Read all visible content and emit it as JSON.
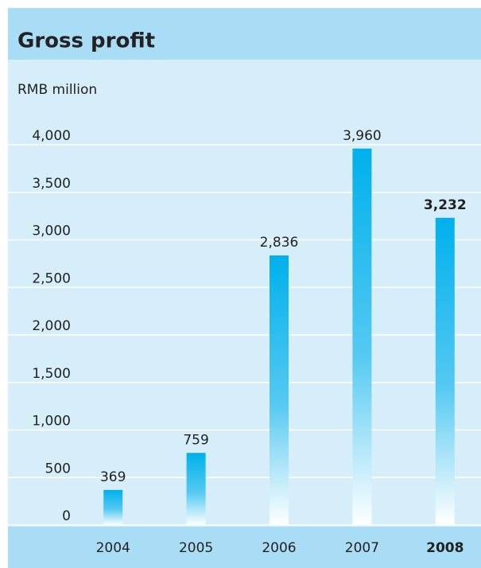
{
  "chart_data": {
    "type": "bar",
    "title": "Gross profit",
    "y_label": "RMB million",
    "categories": [
      "2004",
      "2005",
      "2006",
      "2007",
      "2008"
    ],
    "values": [
      369,
      759,
      2836,
      3960,
      3232
    ],
    "value_labels": [
      "369",
      "759",
      "2,836",
      "3,960",
      "3,232"
    ],
    "color": "#00b0ec",
    "ylim": [
      0,
      4000
    ],
    "yticks": [
      0,
      500,
      {
        "value": 1000,
        "label": "1,000"
      },
      {
        "value": 1500,
        "label": "1,500"
      },
      {
        "value": 2000,
        "label": "2,000"
      },
      {
        "value": 2500,
        "label": "2,500"
      },
      {
        "value": 3000,
        "label": "3,000"
      },
      {
        "value": 3500,
        "label": "3,500"
      },
      {
        "value": 4000,
        "label": "4,000"
      }
    ],
    "grid": true
  }
}
